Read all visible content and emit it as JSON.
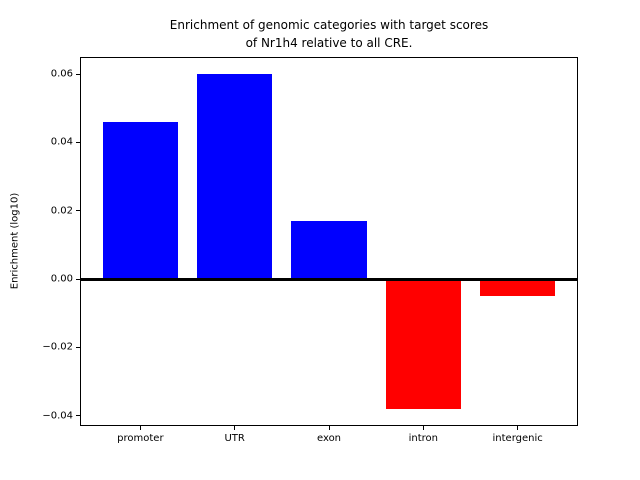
{
  "figure": {
    "title_line1": "Enrichment of genomic categories with target scores",
    "title_line2": "of Nr1h4 relative to all CRE."
  },
  "chart_data": {
    "type": "bar",
    "title": "Enrichment of genomic categories with target scores\nof Nr1h4 relative to all CRE.",
    "xlabel": "",
    "ylabel": "Enrichment (log10)",
    "categories": [
      "promoter",
      "UTR",
      "exon",
      "intron",
      "intergenic"
    ],
    "values": [
      0.046,
      0.06,
      0.017,
      -0.038,
      -0.005
    ],
    "bar_colors": [
      "#0000ff",
      "#0000ff",
      "#0000ff",
      "#ff0000",
      "#ff0000"
    ],
    "positive_color": "#0000ff",
    "negative_color": "#ff0000",
    "ylim": [
      -0.043,
      0.065
    ],
    "yticks": [
      0.06,
      0.04,
      0.02,
      0.0,
      -0.02,
      -0.04
    ],
    "ytick_labels": [
      "0.06",
      "0.04",
      "0.02",
      "0.00",
      "−0.02",
      "−0.04"
    ],
    "grid": false,
    "legend": false,
    "zero_line": true,
    "background": "#ffffff",
    "axis_color": "#000000"
  }
}
